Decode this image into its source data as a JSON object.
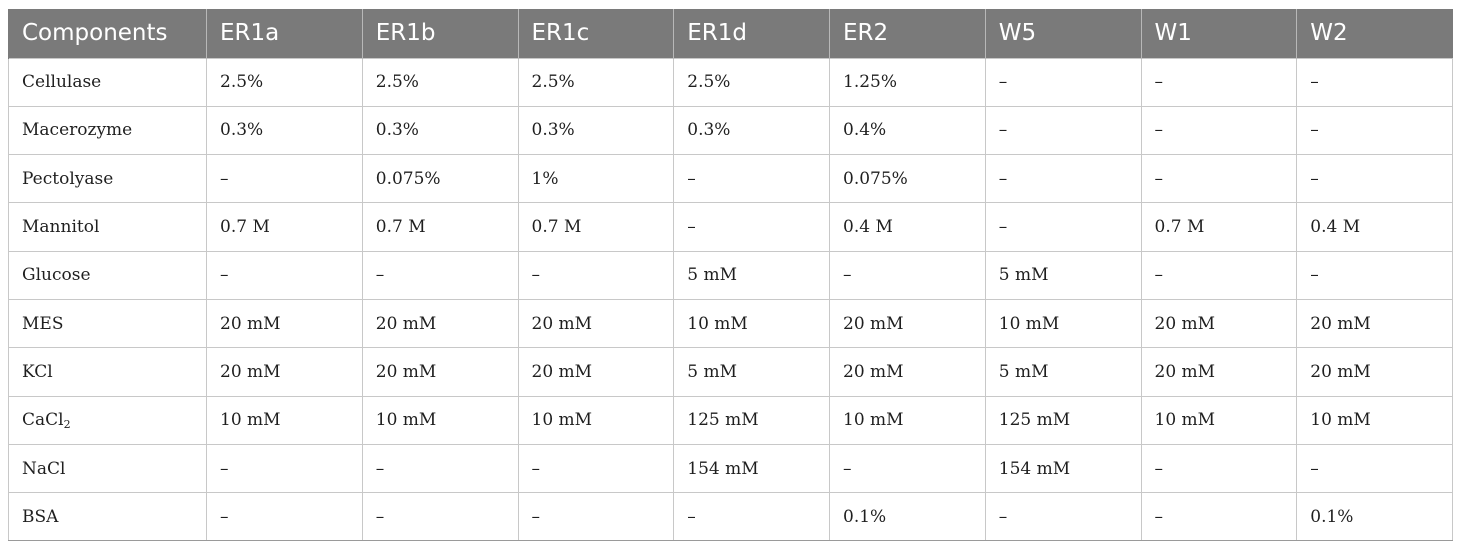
{
  "table": {
    "headers": [
      "Components",
      "ER1a",
      "ER1b",
      "ER1c",
      "ER1d",
      "ER2",
      "W5",
      "W1",
      "W2"
    ],
    "rows": [
      {
        "label": "Cellulase",
        "cells": [
          "2.5%",
          "2.5%",
          "2.5%",
          "2.5%",
          "1.25%",
          "–",
          "–",
          "–"
        ]
      },
      {
        "label": "Macerozyme",
        "cells": [
          "0.3%",
          "0.3%",
          "0.3%",
          "0.3%",
          "0.4%",
          "–",
          "–",
          "–"
        ]
      },
      {
        "label": "Pectolyase",
        "cells": [
          "–",
          "0.075%",
          "1%",
          "–",
          "0.075%",
          "–",
          "–",
          "–"
        ]
      },
      {
        "label": "Mannitol",
        "cells": [
          "0.7 M",
          "0.7 M",
          "0.7 M",
          "–",
          "0.4 M",
          "–",
          "0.7 M",
          "0.4 M"
        ]
      },
      {
        "label": "Glucose",
        "cells": [
          "–",
          "–",
          "–",
          "5 mM",
          "–",
          "5 mM",
          "–",
          "–"
        ]
      },
      {
        "label": "MES",
        "cells": [
          "20 mM",
          "20 mM",
          "20 mM",
          "10 mM",
          "20 mM",
          "10 mM",
          "20 mM",
          "20 mM"
        ]
      },
      {
        "label": "KCl",
        "cells": [
          "20 mM",
          "20 mM",
          "20 mM",
          "5 mM",
          "20 mM",
          "5 mM",
          "20 mM",
          "20 mM"
        ]
      },
      {
        "label": "CaCl",
        "label_sub": "2",
        "cells": [
          "10 mM",
          "10 mM",
          "10 mM",
          "125 mM",
          "10 mM",
          "125 mM",
          "10 mM",
          "10 mM"
        ]
      },
      {
        "label": "NaCl",
        "cells": [
          "–",
          "–",
          "–",
          "154 mM",
          "–",
          "154 mM",
          "–",
          "–"
        ]
      },
      {
        "label": "BSA",
        "cells": [
          "–",
          "–",
          "–",
          "–",
          "0.1%",
          "–",
          "–",
          "0.1%"
        ]
      }
    ]
  },
  "colors": {
    "header_bg": "#7a7a7a",
    "header_text": "#ffffff",
    "grid_line": "#c8c8c8",
    "body_text": "#1f1f1f"
  }
}
